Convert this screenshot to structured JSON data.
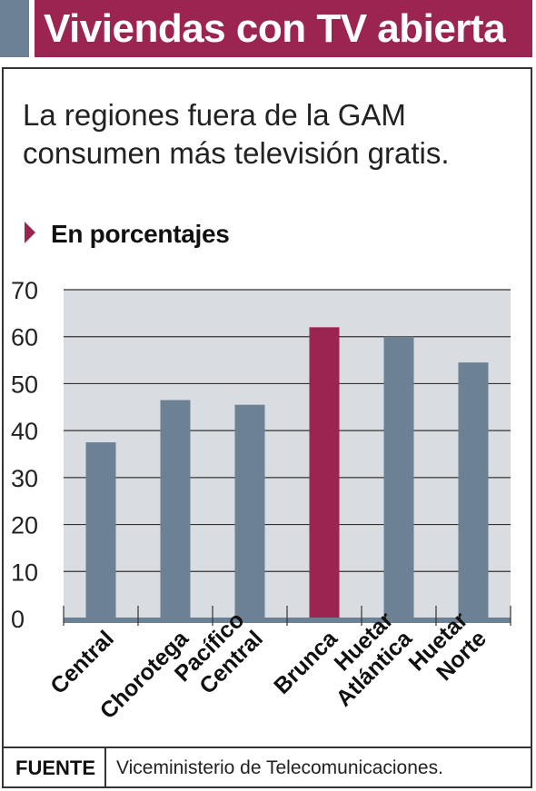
{
  "header": {
    "title": "Viviendas con TV abierta"
  },
  "subtitle": "La regiones fuera de la GAM consumen más televisión gratis.",
  "units_label": "En porcentajes",
  "footer": {
    "source_label": "FUENTE",
    "source_text": "Viceministerio de Telecomunicaciones."
  },
  "colors": {
    "header_bg": "#9b2550",
    "bar": "#6c8193",
    "highlight": "#9b2550",
    "plot_bg": "#d9dce0"
  },
  "chart_data": {
    "type": "bar",
    "categories": [
      [
        "Central"
      ],
      [
        "Chorotega"
      ],
      [
        "Pacífico",
        "Central"
      ],
      [
        "Brunca"
      ],
      [
        "Huetar",
        "Atlántica"
      ],
      [
        "Huetar",
        "Norte"
      ]
    ],
    "values": [
      37.5,
      46.5,
      45.5,
      62,
      60,
      54.5
    ],
    "highlight_index": 3,
    "ylim": [
      0,
      70
    ],
    "yticks": [
      0,
      10,
      20,
      30,
      40,
      50,
      60,
      70
    ],
    "grid": true
  }
}
